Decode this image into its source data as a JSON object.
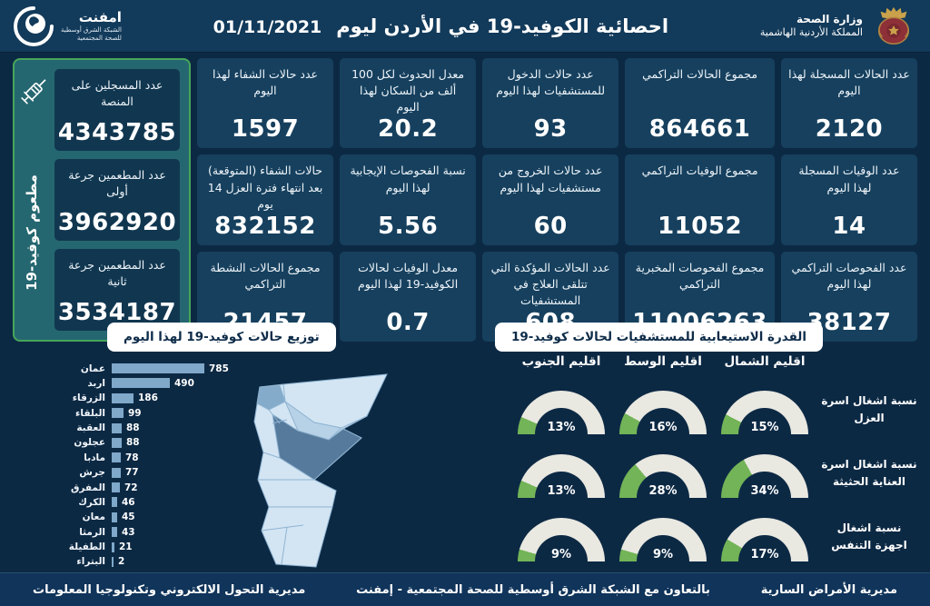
{
  "header": {
    "title": "احصائية الكوفيد-19 في الأردن ليوم",
    "date": "01/11/2021",
    "ministry": {
      "line1": "وزارة الصحة",
      "line2": "المملكة الأردنية الهاشمية"
    },
    "emphnet": {
      "name": "امفنت",
      "line1": "الشبكة الشرق أوسطية",
      "line2": "للصحة المجتمعية"
    }
  },
  "stats_columns": [
    {
      "cards": [
        {
          "label": "عدد الحالات المسجلة لهذا اليوم",
          "value": "2120"
        },
        {
          "label": "عدد الوفيات المسجلة لهذا اليوم",
          "value": "14"
        },
        {
          "label": "عدد الفحوصات التراكمي لهذا اليوم",
          "value": "38127"
        }
      ]
    },
    {
      "cards": [
        {
          "label": "مجموع الحالات التراكمي",
          "value": "864661"
        },
        {
          "label": "مجموع الوفيات التراكمي",
          "value": "11052"
        },
        {
          "label": "مجموع الفحوصات المخبرية التراكمي",
          "value": "11006263"
        }
      ]
    },
    {
      "cards": [
        {
          "label": "عدد حالات الدخول للمستشفيات لهذا اليوم",
          "value": "93"
        },
        {
          "label": "عدد حالات الخروج من مستشفيات لهذا اليوم",
          "value": "60"
        },
        {
          "label": "عدد الحالات المؤكدة التي تتلقى العلاج في المستشفيات",
          "value": "608"
        }
      ]
    },
    {
      "cards": [
        {
          "label": "معدل الحدوث لكل 100 ألف من السكان لهذا اليوم",
          "value": "20.2"
        },
        {
          "label": "نسبة الفحوصات الإيجابية لهذا اليوم",
          "value": "5.56"
        },
        {
          "label": "معدل الوفيات لحالات الكوفيد-19 لهذا اليوم",
          "value": "0.7"
        }
      ]
    },
    {
      "cards": [
        {
          "label": "عدد حالات الشفاء لهذا اليوم",
          "value": "1597"
        },
        {
          "label": "حالات الشفاء (المتوقعة) بعد انتهاء فترة العزل 14 يوم",
          "value": "832152"
        },
        {
          "label": "مجموع الحالات النشطة التراكمي",
          "value": "21457"
        }
      ]
    }
  ],
  "vaccine_panel": {
    "side_label": "مطعوم كوفيد-19",
    "cards": [
      {
        "label": "عدد المسجلين على المنصة",
        "value": "4343785"
      },
      {
        "label": "عدد المطعمين جرعة أولى",
        "value": "3962920"
      },
      {
        "label": "عدد المطعمين جرعة ثانية",
        "value": "3534187"
      }
    ]
  },
  "sections": {
    "distribution_title": "توزيع حالات كوفيد-19 لهذا اليوم",
    "capacity_title": "القدرة الاستيعابية للمستشفيات لحالات كوفيد-19"
  },
  "chart_data": [
    {
      "type": "bar",
      "orientation": "horizontal",
      "title": "توزيع حالات كوفيد-19 لهذا اليوم",
      "categories": [
        "عمان",
        "اربد",
        "الزرقاء",
        "البلقاء",
        "العقبة",
        "عجلون",
        "مادبا",
        "جرش",
        "المفرق",
        "الكرك",
        "معان",
        "الرمثا",
        "الطفيلة",
        "البتراء"
      ],
      "values": [
        785,
        490,
        186,
        99,
        88,
        88,
        78,
        77,
        72,
        46,
        45,
        43,
        21,
        2
      ],
      "xlim": [
        0,
        785
      ],
      "grid": false,
      "value_labels": true
    },
    {
      "type": "gauge-grid",
      "title": "القدرة الاستيعابية للمستشفيات لحالات كوفيد-19",
      "unit": "%",
      "columns_order": "right_to_left",
      "columns": [
        "اقليم الشمال",
        "اقليم الوسط",
        "اقليم الجنوب"
      ],
      "rows": [
        {
          "label": "نسبة اشغال اسرة العزل",
          "values": [
            15,
            16,
            13
          ]
        },
        {
          "label": "نسبة اشغال اسرة العناية الحثيثة",
          "values": [
            34,
            28,
            13
          ]
        },
        {
          "label": "نسبة اشغال اجهزة التنفس",
          "values": [
            17,
            9,
            9
          ]
        }
      ],
      "range": [
        0,
        100
      ]
    }
  ],
  "footer": {
    "right": "مديرية الأمراض السارية",
    "center": "بالتعاون مع الشبكة الشرق أوسطية للصحة المجتمعية - إمفنت",
    "left": "مديرية التحول الالكتروني وتكنولوجيا المعلومات"
  },
  "colors": {
    "page_bg": "#0c2944",
    "header_bg": "#123a5a",
    "card_bg": "#16405e",
    "vaccine_panel_bg": "#256770",
    "vaccine_card_bg": "#113750",
    "accent_green": "#46a65a",
    "bar_blue": "#7fa8c9",
    "gauge_green": "#72b457",
    "gauge_track": "#e9e8e1",
    "map_light": "#d3e5f3",
    "map_medium": "#84abc9",
    "map_dark": "#567a9b"
  }
}
